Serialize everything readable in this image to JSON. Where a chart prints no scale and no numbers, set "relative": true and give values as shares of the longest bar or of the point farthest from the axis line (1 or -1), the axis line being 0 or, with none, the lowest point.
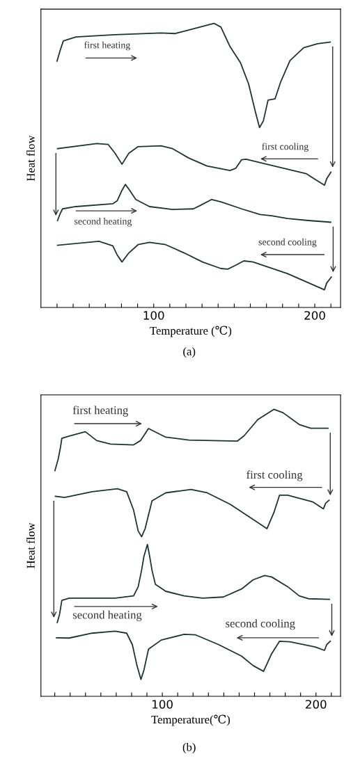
{
  "chart_data": [
    {
      "type": "line",
      "relative": true,
      "xlabel": "Temperature (℃)",
      "ylabel": "Heat flow",
      "annotations": [
        "(a)"
      ],
      "xlim": [
        30,
        216
      ],
      "tick_labels": "x",
      "xticks": [
        {
          "value": 40,
          "label": null
        },
        {
          "value": 50,
          "label": null
        },
        {
          "value": 60,
          "label": null
        },
        {
          "value": 70,
          "label": null
        },
        {
          "value": 80,
          "label": null
        },
        {
          "value": 90,
          "label": null
        },
        100,
        {
          "value": 110,
          "label": null
        },
        {
          "value": 120,
          "label": null
        },
        {
          "value": 130,
          "label": null
        },
        {
          "value": 140,
          "label": null
        },
        {
          "value": 150,
          "label": null
        },
        {
          "value": 160,
          "label": null
        },
        {
          "value": 170,
          "label": null
        },
        {
          "value": 180,
          "label": null
        },
        {
          "value": 190,
          "label": null
        },
        200,
        {
          "value": 210,
          "label": null
        }
      ],
      "series": [
        {
          "name": "first heating",
          "color": "#1b3436",
          "x": [
            40.0,
            42.0,
            43.9,
            51.7,
            76.0,
            104.6,
            113.1,
            118.9,
            137.4,
            141.7,
            147.4,
            153.9,
            158.9,
            163.1,
            165.7,
            168.1,
            171.0,
            175.3,
            178.9,
            184.6,
            193.1,
            201.7,
            209.6
          ],
          "values": [
            0.867,
            0.906,
            0.938,
            0.952,
            0.96,
            0.966,
            0.964,
            0.972,
            1.0,
            0.987,
            0.918,
            0.861,
            0.787,
            0.689,
            0.633,
            0.657,
            0.73,
            0.734,
            0.795,
            0.869,
            0.914,
            0.928,
            0.934
          ]
        },
        {
          "name": "first cooling",
          "color": "#1b3436",
          "x": [
            40.3,
            64.6,
            71.7,
            76.0,
            80.3,
            84.6,
            90.3,
            104.6,
            111.7,
            121.7,
            133.1,
            147.4,
            151.0,
            154.6,
            157.4,
            168.9,
            194.6,
            206.0,
            207.4,
            210.0
          ],
          "values": [
            0.559,
            0.577,
            0.574,
            0.543,
            0.504,
            0.543,
            0.566,
            0.569,
            0.559,
            0.526,
            0.498,
            0.482,
            0.49,
            0.52,
            0.522,
            0.506,
            0.471,
            0.43,
            0.453,
            0.476
          ]
        },
        {
          "name": "second heating",
          "color": "#1b3436",
          "x": [
            40.3,
            42.0,
            43.4,
            51.7,
            74.6,
            77.4,
            80.3,
            82.4,
            84.6,
            88.9,
            97.4,
            111.7,
            124.6,
            128.9,
            136.0,
            141.7,
            154.6,
            166.0,
            173.1,
            183.1,
            196.0,
            209.9
          ],
          "values": [
            0.306,
            0.331,
            0.347,
            0.355,
            0.365,
            0.376,
            0.412,
            0.433,
            0.416,
            0.38,
            0.355,
            0.345,
            0.347,
            0.359,
            0.38,
            0.372,
            0.347,
            0.327,
            0.323,
            0.313,
            0.306,
            0.3
          ]
        },
        {
          "name": "second cooling",
          "color": "#1b3436",
          "x": [
            40.3,
            66.0,
            74.6,
            77.4,
            80.3,
            84.6,
            90.3,
            97.4,
            107.4,
            118.9,
            130.3,
            141.7,
            146.0,
            150.3,
            156.0,
            161.7,
            183.1,
            206.0,
            207.4,
            210.3
          ],
          "values": [
            0.219,
            0.233,
            0.217,
            0.184,
            0.16,
            0.192,
            0.221,
            0.229,
            0.221,
            0.192,
            0.16,
            0.137,
            0.135,
            0.147,
            0.164,
            0.16,
            0.119,
            0.062,
            0.086,
            0.107
          ]
        }
      ]
    },
    {
      "type": "line",
      "relative": true,
      "xlabel": "Temperature(℃)",
      "ylabel": "Heat flow",
      "annotations": [
        "(b)"
      ],
      "xlim": [
        21,
        216
      ],
      "tick_labels": "x",
      "xticks": [
        {
          "value": 30,
          "label": null
        },
        {
          "value": 40,
          "label": null
        },
        {
          "value": 50,
          "label": null
        },
        {
          "value": 60,
          "label": null
        },
        {
          "value": 70,
          "label": null
        },
        {
          "value": 80,
          "label": null
        },
        {
          "value": 90,
          "label": null
        },
        100,
        {
          "value": 110,
          "label": null
        },
        {
          "value": 120,
          "label": null
        },
        {
          "value": 130,
          "label": null
        },
        {
          "value": 140,
          "label": null
        },
        {
          "value": 150,
          "label": null
        },
        {
          "value": 160,
          "label": null
        },
        {
          "value": 170,
          "label": null
        },
        {
          "value": 180,
          "label": null
        },
        {
          "value": 190,
          "label": null
        },
        200,
        {
          "value": 210,
          "label": null
        }
      ],
      "series": [
        {
          "name": "first heating",
          "color": "#1b3436",
          "x": [
            30.1,
            32.2,
            33.7,
            34.6,
            39.4,
            49.9,
            57.3,
            66.3,
            81.3,
            85.8,
            91.0,
            94.8,
            102.2,
            117.2,
            148.7,
            153.1,
            162.1,
            172.6,
            178.6,
            189.1,
            196.6,
            207.8
          ],
          "values": [
            0.786,
            0.826,
            0.867,
            0.899,
            0.907,
            0.922,
            0.891,
            0.879,
            0.876,
            0.891,
            0.933,
            0.923,
            0.903,
            0.893,
            0.889,
            0.907,
            0.964,
            1.0,
            0.988,
            0.947,
            0.934,
            0.934
          ]
        },
        {
          "name": "first cooling",
          "color": "#1b3436",
          "x": [
            30.4,
            36.4,
            54.3,
            70.8,
            76.8,
            81.3,
            84.3,
            86.5,
            88.8,
            93.3,
            102.2,
            118.7,
            129.2,
            144.2,
            159.1,
            168.1,
            172.6,
            176.3,
            181.6,
            198.1,
            204.8,
            206.3,
            208.5
          ],
          "values": [
            0.697,
            0.693,
            0.713,
            0.723,
            0.713,
            0.649,
            0.576,
            0.556,
            0.584,
            0.681,
            0.709,
            0.721,
            0.709,
            0.669,
            0.616,
            0.584,
            0.64,
            0.701,
            0.701,
            0.677,
            0.653,
            0.673,
            0.683
          ]
        },
        {
          "name": "second heating",
          "color": "#1b3436",
          "x": [
            31.6,
            33.1,
            34.6,
            39.4,
            69.3,
            81.3,
            84.3,
            86.5,
            88.0,
            90.3,
            91.8,
            93.3,
            95.5,
            102.2,
            114.2,
            126.2,
            139.7,
            151.6,
            159.1,
            166.6,
            171.1,
            181.6,
            189.1,
            195.1,
            208.8
          ],
          "values": [
            0.257,
            0.285,
            0.334,
            0.342,
            0.342,
            0.35,
            0.382,
            0.439,
            0.487,
            0.529,
            0.487,
            0.439,
            0.39,
            0.366,
            0.35,
            0.342,
            0.346,
            0.374,
            0.406,
            0.421,
            0.416,
            0.382,
            0.35,
            0.34,
            0.338
          ]
        },
        {
          "name": "second cooling",
          "color": "#1b3436",
          "x": [
            31.1,
            39.4,
            54.3,
            69.3,
            76.8,
            80.5,
            83.5,
            86.1,
            88.0,
            91.0,
            99.3,
            114.2,
            121.7,
            136.7,
            151.6,
            159.1,
            165.9,
            171.1,
            176.3,
            183.1,
            199.6,
            205.5,
            207.0,
            209.3
          ],
          "values": [
            0.204,
            0.203,
            0.22,
            0.227,
            0.22,
            0.18,
            0.107,
            0.059,
            0.091,
            0.164,
            0.196,
            0.216,
            0.214,
            0.18,
            0.14,
            0.107,
            0.087,
            0.148,
            0.192,
            0.19,
            0.172,
            0.16,
            0.18,
            0.192
          ]
        }
      ]
    }
  ]
}
